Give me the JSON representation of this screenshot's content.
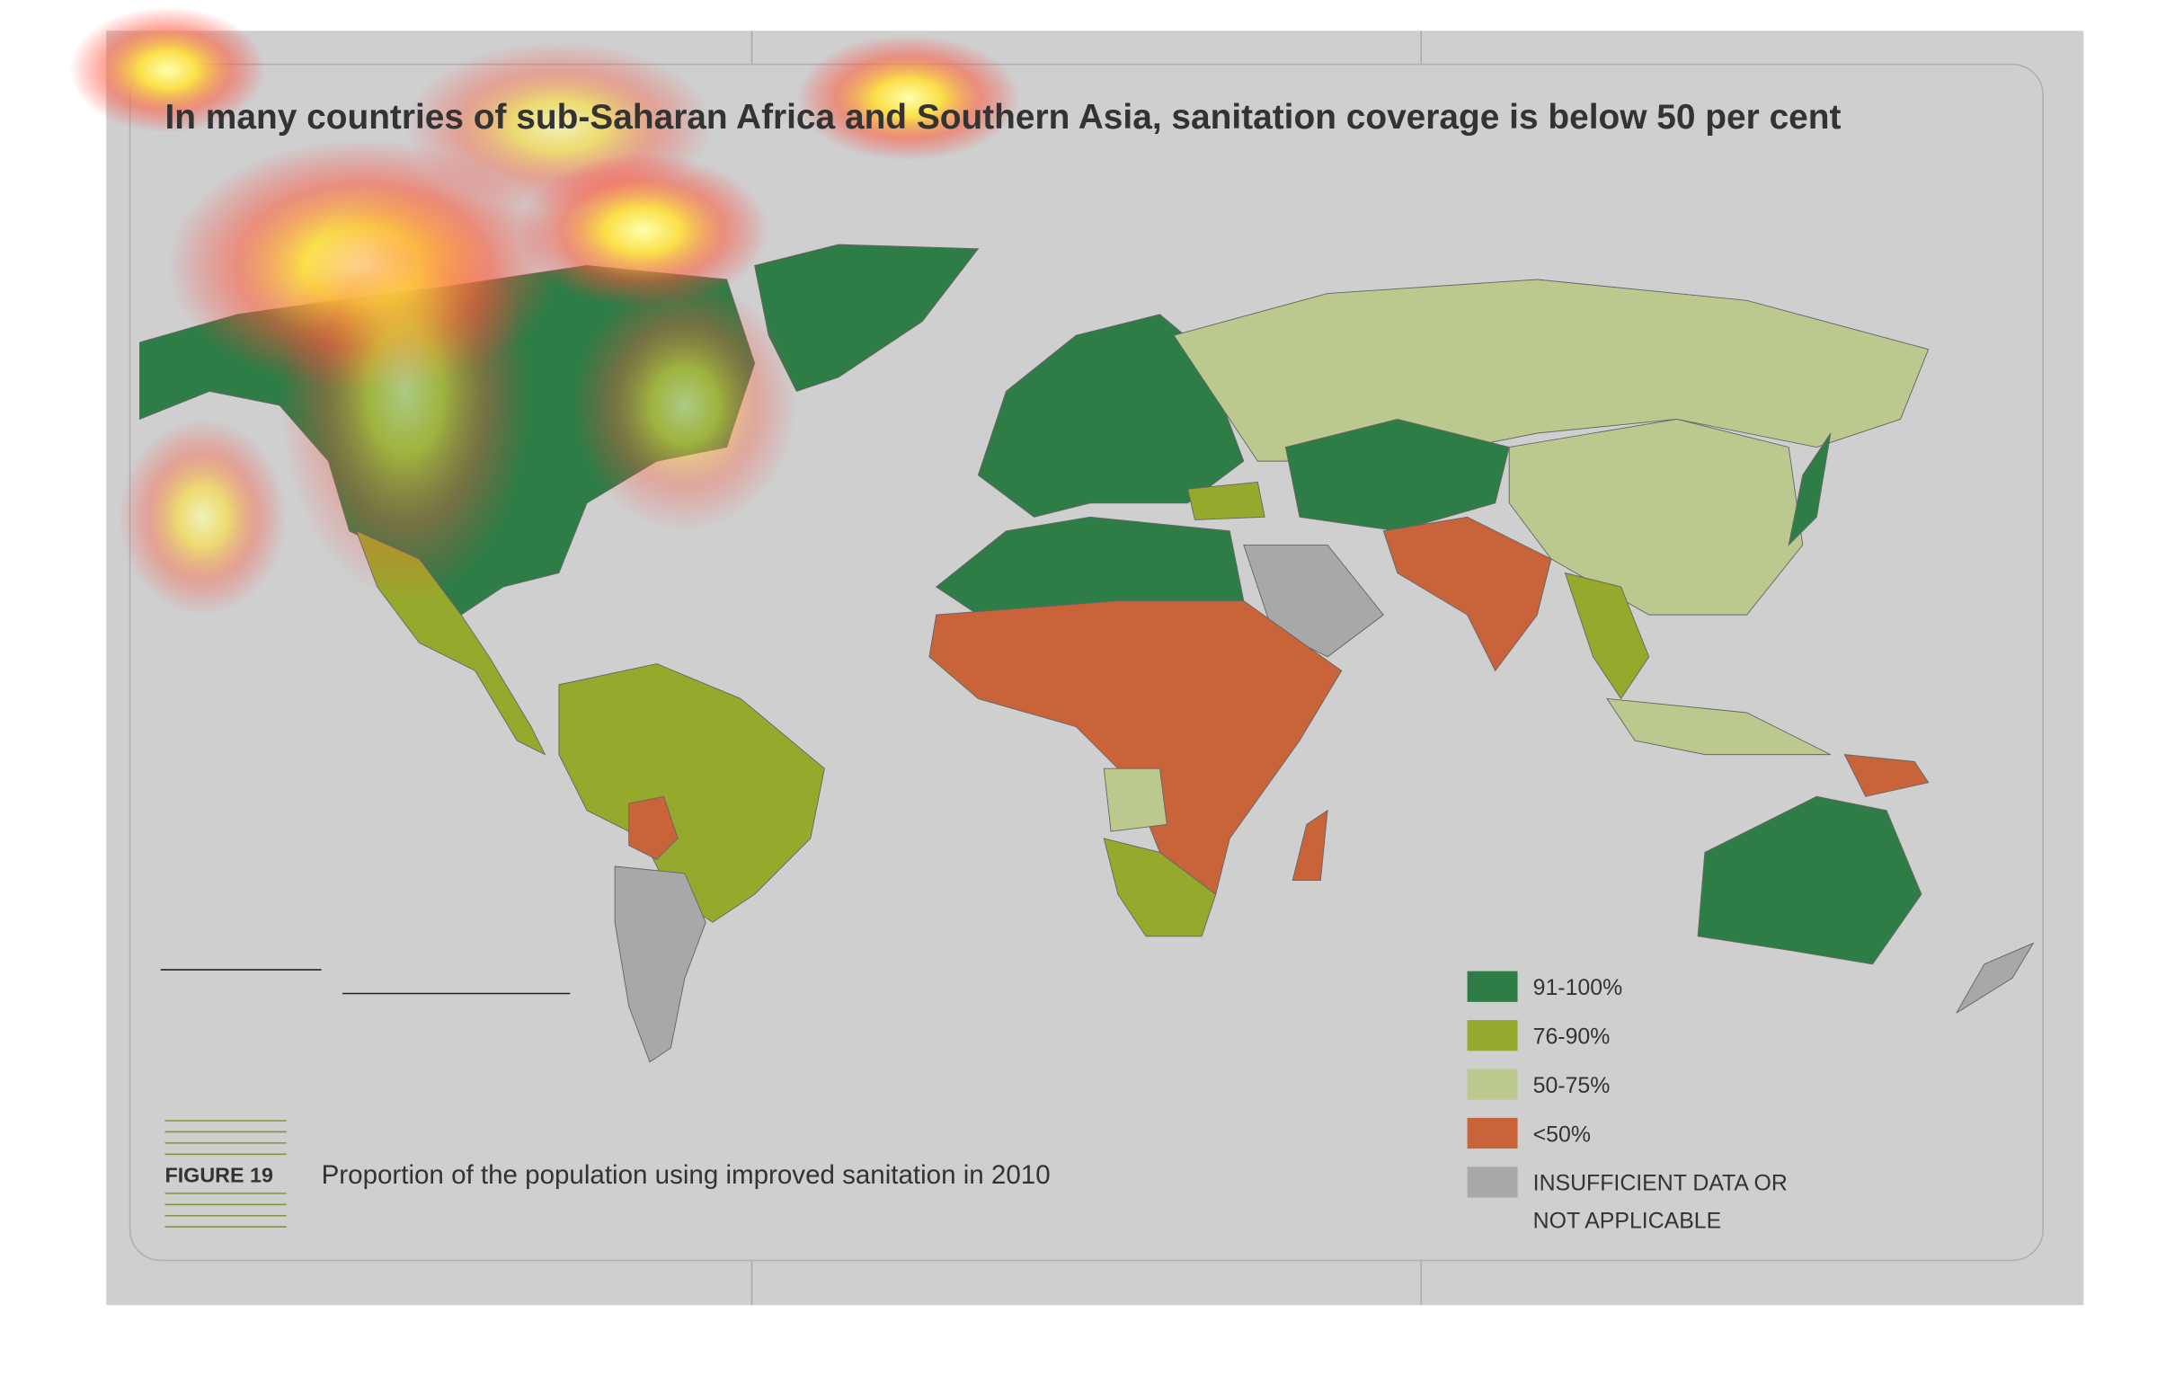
{
  "header": {
    "title": "In many countries of sub-Saharan Africa and Southern Asia, sanitation coverage is below 50 per cent"
  },
  "legend": {
    "items": [
      {
        "lines": [
          "91-100%"
        ],
        "color": "#2e7d46"
      },
      {
        "lines": [
          "76-90%"
        ],
        "color": "#97a92c"
      },
      {
        "lines": [
          "50-75%"
        ],
        "color": "#bcc98e"
      },
      {
        "lines": [
          "<50%"
        ],
        "color": "#c9643a"
      },
      {
        "lines": [
          "INSUFFICIENT DATA OR",
          "NOT APPLICABLE"
        ],
        "color": "#a8a8a8"
      }
    ]
  },
  "figure": {
    "label": "FIGURE 19",
    "caption": "Proportion of the population using improved sanitation in 2010"
  }
}
